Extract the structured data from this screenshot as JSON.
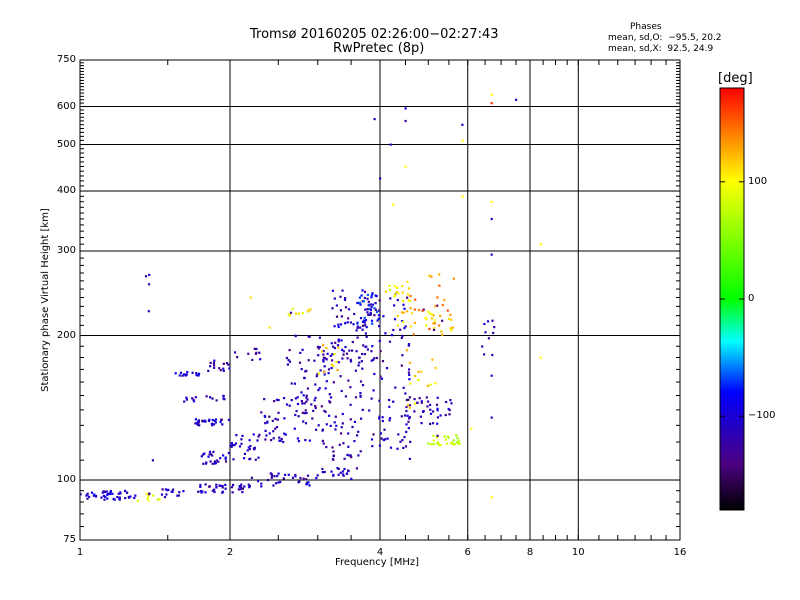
{
  "title_line1": "Tromsø 20160205 02:26:00−02:27:43",
  "title_line2": "RwPretec (8p)",
  "info": {
    "heading": "Phases",
    "line1": "mean, sd,O:  −95.5, 20.2",
    "line2": "mean, sd,X:  92.5, 24.9"
  },
  "colorbar": {
    "unit": "[deg]",
    "range": [
      -180,
      180
    ],
    "ticks": [
      {
        "value": 100,
        "label": "100"
      },
      {
        "value": 0,
        "label": "0"
      },
      {
        "value": -100,
        "label": "−100"
      }
    ]
  },
  "chart_data": {
    "type": "scatter",
    "xlabel": "Frequency [MHz]",
    "ylabel": "Stationary phase Virtual Height [km]",
    "x_scale": "log",
    "y_scale": "log",
    "xlim": [
      1,
      16
    ],
    "ylim": [
      75,
      750
    ],
    "grid": true,
    "x_ticks": [
      {
        "value": 1,
        "label": "1"
      },
      {
        "value": 2,
        "label": "2"
      },
      {
        "value": 4,
        "label": "4"
      },
      {
        "value": 6,
        "label": "6"
      },
      {
        "value": 8,
        "label": "8"
      },
      {
        "value": 10,
        "label": "10"
      },
      {
        "value": 16,
        "label": "16"
      }
    ],
    "y_ticks": [
      {
        "value": 75,
        "label": "75"
      },
      {
        "value": 100,
        "label": "100"
      },
      {
        "value": 200,
        "label": "200"
      },
      {
        "value": 300,
        "label": "300"
      },
      {
        "value": 400,
        "label": "400"
      },
      {
        "value": 500,
        "label": "500"
      },
      {
        "value": 600,
        "label": "600"
      },
      {
        "value": 750,
        "label": "750"
      }
    ],
    "clusters": [
      {
        "f": [
          1.0,
          1.3
        ],
        "h": [
          91,
          95
        ],
        "phase": -105,
        "n": 45
      },
      {
        "f": [
          1.3,
          1.5
        ],
        "h": [
          90,
          94
        ],
        "phase": 85,
        "n": 10
      },
      {
        "f": [
          1.45,
          1.62
        ],
        "h": [
          92,
          96
        ],
        "phase": -110,
        "n": 14
      },
      {
        "f": [
          1.72,
          2.2
        ],
        "h": [
          94,
          98
        ],
        "phase": -110,
        "n": 40
      },
      {
        "f": [
          2.2,
          3.0
        ],
        "h": [
          97,
          104
        ],
        "phase": -105,
        "n": 35
      },
      {
        "f": [
          3.0,
          3.6
        ],
        "h": [
          100,
          106
        ],
        "phase": -110,
        "n": 20
      },
      {
        "f": [
          1.7,
          2.0
        ],
        "h": [
          130,
          134
        ],
        "phase": -100,
        "n": 30
      },
      {
        "f": [
          1.75,
          2.0
        ],
        "h": [
          108,
          115
        ],
        "phase": -110,
        "n": 25
      },
      {
        "f": [
          2.0,
          2.3
        ],
        "h": [
          110,
          125
        ],
        "phase": -110,
        "n": 30
      },
      {
        "f": [
          2.3,
          3.0
        ],
        "h": [
          120,
          150
        ],
        "phase": -110,
        "n": 60
      },
      {
        "f": [
          2.6,
          3.2
        ],
        "h": [
          135,
          200
        ],
        "phase": -115,
        "n": 50
      },
      {
        "f": [
          3.0,
          3.7
        ],
        "h": [
          110,
          195
        ],
        "phase": -115,
        "n": 90
      },
      {
        "f": [
          3.2,
          3.85
        ],
        "h": [
          180,
          250
        ],
        "phase": -110,
        "n": 70
      },
      {
        "f": [
          3.6,
          4.0
        ],
        "h": [
          210,
          245
        ],
        "phase": -80,
        "n": 30
      },
      {
        "f": [
          3.8,
          4.6
        ],
        "h": [
          110,
          240
        ],
        "phase": -110,
        "n": 90
      },
      {
        "f": [
          4.1,
          4.6
        ],
        "h": [
          235,
          260
        ],
        "phase": 100,
        "n": 20
      },
      {
        "f": [
          4.3,
          5.6
        ],
        "h": [
          205,
          225
        ],
        "phase": 110,
        "n": 30
      },
      {
        "f": [
          4.6,
          5.8
        ],
        "h": [
          200,
          270
        ],
        "phase": 140,
        "n": 25
      },
      {
        "f": [
          4.5,
          5.6
        ],
        "h": [
          130,
          150
        ],
        "phase": -110,
        "n": 40
      },
      {
        "f": [
          5.0,
          5.8
        ],
        "h": [
          118,
          124
        ],
        "phase": 75,
        "n": 30
      },
      {
        "f": [
          4.4,
          5.2
        ],
        "h": [
          140,
          190
        ],
        "phase": 110,
        "n": 15
      },
      {
        "f": [
          1.55,
          1.75
        ],
        "h": [
          165,
          168
        ],
        "phase": -100,
        "n": 15
      },
      {
        "f": [
          1.8,
          2.0
        ],
        "h": [
          168,
          178
        ],
        "phase": -120,
        "n": 15
      },
      {
        "f": [
          1.6,
          1.95
        ],
        "h": [
          145,
          150
        ],
        "phase": -110,
        "n": 15
      },
      {
        "f": [
          2.0,
          2.3
        ],
        "h": [
          178,
          190
        ],
        "phase": -120,
        "n": 10
      },
      {
        "f": [
          2.6,
          2.9
        ],
        "h": [
          220,
          228
        ],
        "phase": 100,
        "n": 10
      },
      {
        "f": [
          1.35,
          1.4
        ],
        "h": [
          220,
          270
        ],
        "phase": -115,
        "n": 4
      },
      {
        "f": [
          3.0,
          3.3
        ],
        "h": [
          165,
          195
        ],
        "phase": 115,
        "n": 12
      },
      {
        "f": [
          6.4,
          6.8
        ],
        "h": [
          180,
          215
        ],
        "phase": -110,
        "n": 10
      }
    ],
    "points": [
      {
        "f": 3.9,
        "h": 565,
        "phase": -110
      },
      {
        "f": 4.5,
        "h": 560,
        "phase": -130
      },
      {
        "f": 4.5,
        "h": 595,
        "phase": -90
      },
      {
        "f": 4.2,
        "h": 500,
        "phase": -110
      },
      {
        "f": 4.0,
        "h": 425,
        "phase": -110
      },
      {
        "f": 4.5,
        "h": 450,
        "phase": 100
      },
      {
        "f": 4.25,
        "h": 375,
        "phase": 100
      },
      {
        "f": 5.85,
        "h": 550,
        "phase": -100
      },
      {
        "f": 5.85,
        "h": 510,
        "phase": 100
      },
      {
        "f": 5.85,
        "h": 390,
        "phase": 100
      },
      {
        "f": 6.7,
        "h": 635,
        "phase": 100
      },
      {
        "f": 6.7,
        "h": 610,
        "phase": 170
      },
      {
        "f": 7.5,
        "h": 620,
        "phase": -110
      },
      {
        "f": 6.7,
        "h": 380,
        "phase": 100
      },
      {
        "f": 6.7,
        "h": 350,
        "phase": -110
      },
      {
        "f": 6.7,
        "h": 295,
        "phase": -110
      },
      {
        "f": 8.4,
        "h": 310,
        "phase": 100
      },
      {
        "f": 8.4,
        "h": 180,
        "phase": 100
      },
      {
        "f": 6.7,
        "h": 92,
        "phase": 100
      },
      {
        "f": 1.4,
        "h": 110,
        "phase": -110
      },
      {
        "f": 6.1,
        "h": 128,
        "phase": 100
      },
      {
        "f": 6.7,
        "h": 135,
        "phase": -110
      },
      {
        "f": 6.7,
        "h": 165,
        "phase": -110
      },
      {
        "f": 2.4,
        "h": 208,
        "phase": 110
      },
      {
        "f": 2.2,
        "h": 240,
        "phase": 110
      }
    ]
  }
}
